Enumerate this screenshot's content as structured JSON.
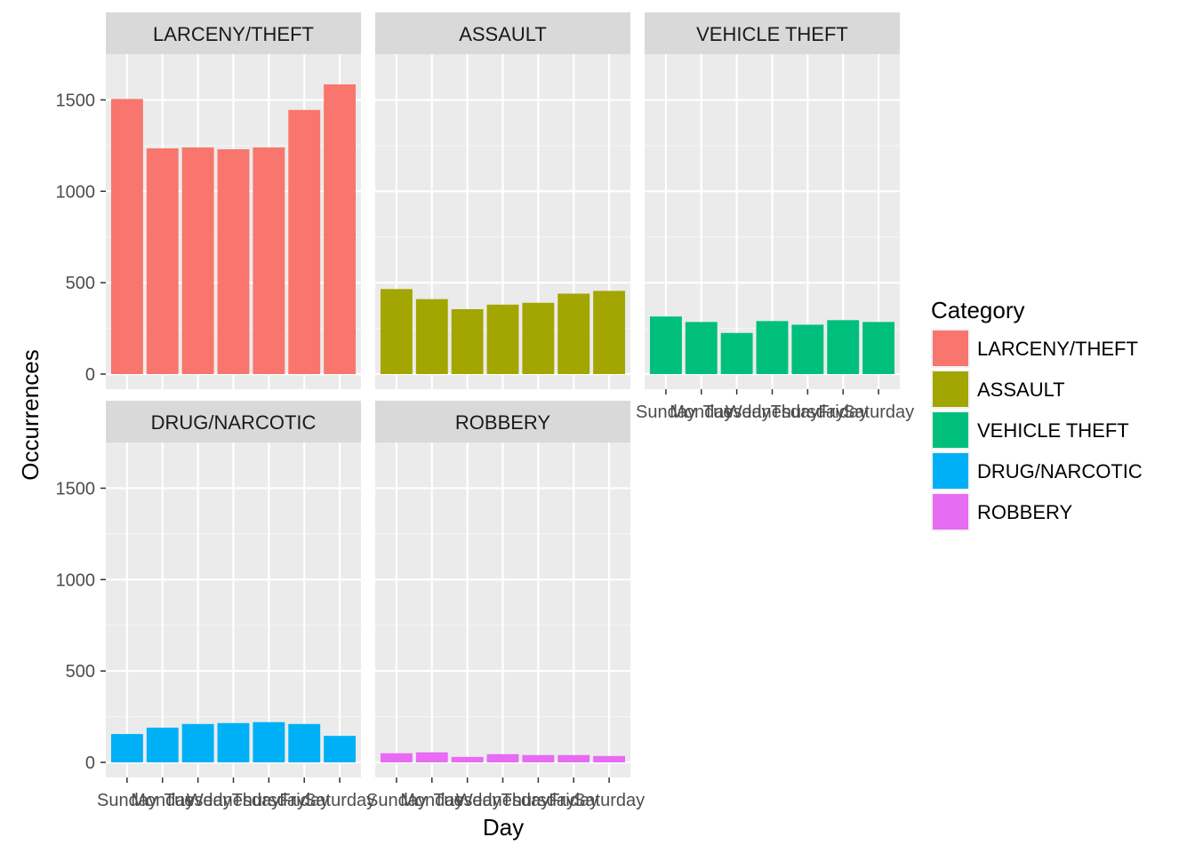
{
  "chart_data": {
    "type": "bar",
    "layout": "facet_wrap",
    "x_label": "Day",
    "y_label": "Occurrences",
    "categories": [
      "Sunday",
      "Monday",
      "Tuesday",
      "Wednesday",
      "Thursday",
      "Friday",
      "Saturday"
    ],
    "ylim": [
      0,
      1750
    ],
    "y_ticks": [
      0,
      500,
      1000,
      1500
    ],
    "grid": true,
    "legend": {
      "title": "Category",
      "placement": "right"
    },
    "series": [
      {
        "name": "LARCENY/THEFT",
        "color": "#F8766D",
        "values": [
          1505,
          1235,
          1240,
          1230,
          1240,
          1445,
          1585
        ]
      },
      {
        "name": "ASSAULT",
        "color": "#A3A500",
        "values": [
          465,
          410,
          355,
          380,
          390,
          440,
          455
        ]
      },
      {
        "name": "VEHICLE THEFT",
        "color": "#00BF7D",
        "values": [
          315,
          285,
          225,
          290,
          270,
          295,
          285
        ]
      },
      {
        "name": "DRUG/NARCOTIC",
        "color": "#00B0F6",
        "values": [
          155,
          190,
          210,
          215,
          220,
          210,
          145
        ]
      },
      {
        "name": "ROBBERY",
        "color": "#E76BF3",
        "values": [
          50,
          55,
          30,
          45,
          40,
          40,
          35
        ]
      }
    ]
  }
}
